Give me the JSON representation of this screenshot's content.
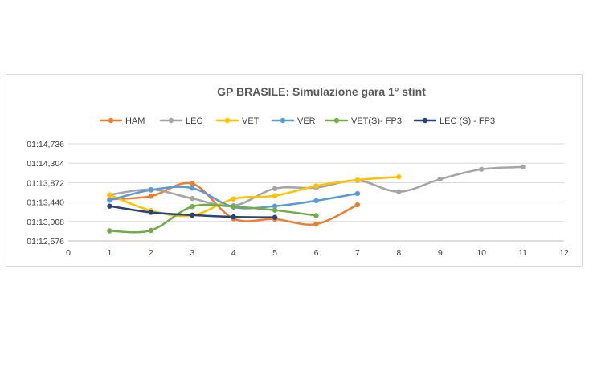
{
  "chart_data": {
    "type": "line",
    "title": "GP BRASILE: Simulazione gara 1° stint",
    "xlabel": "",
    "ylabel": "",
    "legend_position": "top",
    "grid": "horizontal",
    "xlim": [
      0,
      12
    ],
    "x_ticks": [
      "0",
      "1",
      "2",
      "3",
      "4",
      "5",
      "6",
      "7",
      "8",
      "9",
      "10",
      "11",
      "12"
    ],
    "ylim": [
      72.576,
      74.736
    ],
    "y_ticks": [
      {
        "value": 72.576,
        "label": "01:12,576"
      },
      {
        "value": 73.008,
        "label": "01:13,008"
      },
      {
        "value": 73.44,
        "label": "01:13,440"
      },
      {
        "value": 73.872,
        "label": "01:13,872"
      },
      {
        "value": 74.304,
        "label": "01:14,304"
      },
      {
        "value": 74.736,
        "label": "01:14,736"
      }
    ],
    "series": [
      {
        "name": "HAM",
        "color": "#ED7D31",
        "x": [
          1,
          2,
          3,
          4,
          5,
          6,
          7
        ],
        "y": [
          73.5,
          73.57,
          73.85,
          73.07,
          73.06,
          72.95,
          73.38
        ]
      },
      {
        "name": "LEC",
        "color": "#A5A5A5",
        "x": [
          1,
          2,
          3,
          4,
          5,
          6,
          7,
          8,
          9,
          10,
          11
        ],
        "y": [
          73.6,
          73.72,
          73.52,
          73.36,
          73.74,
          73.76,
          73.92,
          73.67,
          73.95,
          74.17,
          74.22
        ]
      },
      {
        "name": "VET",
        "color": "#FFC000",
        "x": [
          1,
          2,
          3,
          4,
          5,
          6,
          7,
          8
        ],
        "y": [
          73.6,
          73.25,
          73.14,
          73.51,
          73.58,
          73.8,
          73.93,
          74.0
        ]
      },
      {
        "name": "VER",
        "color": "#5B9BD5",
        "x": [
          1,
          2,
          3,
          4,
          5,
          6,
          7
        ],
        "y": [
          73.48,
          73.71,
          73.75,
          73.33,
          73.35,
          73.47,
          73.63
        ]
      },
      {
        "name": "VET(S)- FP3",
        "color": "#70AD47",
        "x": [
          1,
          2,
          3,
          4,
          5,
          6
        ],
        "y": [
          72.8,
          72.81,
          73.34,
          73.34,
          73.26,
          73.14
        ]
      },
      {
        "name": "LEC (S) - FP3",
        "color": "#264478",
        "x": [
          1,
          2,
          3,
          4,
          5
        ],
        "y": [
          73.35,
          73.21,
          73.15,
          73.11,
          73.1
        ]
      }
    ]
  }
}
